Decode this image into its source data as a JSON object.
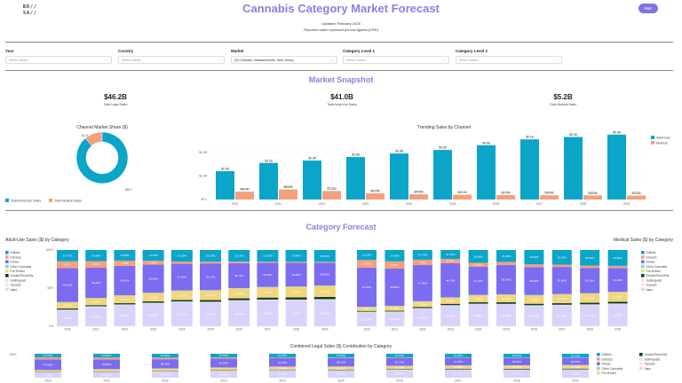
{
  "header": {
    "logo_text": "BD// SA//",
    "title": "Cannabis Category Market Forecast",
    "pdf_label": "PDF",
    "updated": "Updated: February 2025",
    "note": "Reported sales represent pre-tax figures (USD)"
  },
  "filters": [
    {
      "label": "Year",
      "value": "",
      "placeholder": "Select values"
    },
    {
      "label": "Country",
      "value": "",
      "placeholder": "Select values"
    },
    {
      "label": "Market",
      "value": "(3) Colorado, Massachusetts, New Jersey",
      "placeholder": ""
    },
    {
      "label": "Category Level 1",
      "value": "",
      "placeholder": "Select values"
    },
    {
      "label": "Category Level 2",
      "value": "",
      "placeholder": "Select values"
    }
  ],
  "snapshot": {
    "title": "Market Snapshot",
    "kpis": [
      {
        "value": "$46.2B",
        "label": "Total Legal Sales"
      },
      {
        "value": "$41.0B",
        "label": "Total Adult-Use Sales"
      },
      {
        "value": "$5.2B",
        "label": "Total Medical Sales"
      }
    ]
  },
  "forecast_title": "Category Forecast",
  "colors": {
    "accent": "#8a80e0",
    "adult": "#0aa5c8",
    "medical": "#f5a07c"
  },
  "chart_data": [
    {
      "type": "pie",
      "title": "Channel Market Share ($)",
      "labels": [
        "Total Adult-Use Sales",
        "Total Medical Sales"
      ],
      "values": [
        88.7,
        11.3
      ],
      "value_labels": [
        "88.7",
        "11.3"
      ],
      "colors": [
        "#0aa5c8",
        "#f5a07c"
      ],
      "hole": true,
      "legend": "bottom"
    },
    {
      "type": "bar",
      "title": "Trending Sales by Channel",
      "categories": [
        "2020",
        "2021",
        "2022",
        "2023",
        "2024",
        "2025",
        "2026",
        "2027",
        "2028",
        "2029"
      ],
      "series": [
        {
          "name": "Adult-Use",
          "values": [
            2.4,
            3.1,
            3.3,
            3.6,
            3.9,
            4.2,
            4.6,
            5.1,
            5.3,
            5.5
          ],
          "labels": [
            "$2.4B",
            "$3.1B",
            "$3.3B",
            "$3.6B",
            "$3.9B",
            "$4.2B",
            "$4.6B",
            "$5.1B",
            "$5.3B",
            "$5.5B"
          ],
          "color": "#0aa5c8"
        },
        {
          "name": "Medical",
          "values": [
            0.664,
            0.85,
            0.722,
            0.52,
            0.44,
            0.401,
            0.379,
            0.36,
            0.35,
            0.332
          ],
          "labels": [
            "$664M",
            "$850M",
            "$722M",
            "$520M",
            "$440M",
            "$401M",
            "$379M",
            "$360M",
            "$350M",
            "$332M"
          ],
          "color": "#f5a07c"
        }
      ],
      "yticks": [
        "$0.0",
        "$2.0B",
        "$4.0B"
      ],
      "ytick_values": [
        0,
        2,
        4
      ],
      "ylim": [
        0,
        6
      ],
      "legend": "top-right",
      "grid": true
    },
    {
      "type": "bar",
      "stacked": true,
      "title": "Adult-Use Sales ($) by Category",
      "categories": [
        "2020",
        "2021",
        "2022",
        "2023",
        "2024",
        "2025",
        "2026",
        "2027",
        "2028",
        "2029"
      ],
      "yticks": [
        "0%",
        "50%",
        "100%"
      ],
      "legend": "left",
      "series": [
        {
          "name": "Vape",
          "color": "#d8d3fb",
          "values": [
            20.8,
            25.2,
            27.6,
            29.8,
            31.5,
            31.1,
            33.2,
            34,
            34,
            34.5
          ]
        },
        {
          "name": "Topicals",
          "color": "#fde6c6",
          "values": [
            0.5,
            0.5,
            0.5,
            0.5,
            0.5,
            0.5,
            0.5,
            0.5,
            0.5,
            0.5
          ]
        },
        {
          "name": "Sublinguals",
          "color": "#c9eef6",
          "values": [
            0.5,
            0.5,
            0.5,
            0.5,
            0.5,
            0.5,
            0.5,
            0.5,
            0.5,
            0.5
          ]
        },
        {
          "name": "Smoke/Pens/Kits",
          "color": "#0f3b2e",
          "values": [
            1.5,
            1.5,
            1.6,
            1.8,
            2,
            2.2,
            2.4,
            2.6,
            2.8,
            3
          ]
        },
        {
          "name": "Pre-Rolled",
          "color": "#f2d67c",
          "values": [
            8,
            9,
            10,
            11,
            12,
            12.5,
            13,
            13.5,
            14,
            14.5
          ]
        },
        {
          "name": "Other Cannabis",
          "color": "#98d2c3",
          "values": [
            0.5,
            0.5,
            0.5,
            0.5,
            0.5,
            0.5,
            0.5,
            0.5,
            0.5,
            0.5
          ]
        },
        {
          "name": "Flower",
          "color": "#7b6cf2",
          "values": [
            44.5,
            39.8,
            38.4,
            36.8,
            34.9,
            35.1,
            32.7,
            31.6,
            30.8,
            29.8
          ]
        },
        {
          "name": "Extracts",
          "color": "#f5a07c",
          "values": [
            9,
            8.5,
            7,
            5,
            3,
            2.5,
            2,
            1.5,
            1.5,
            1.2
          ]
        },
        {
          "name": "Edibles",
          "color": "#0aa5c8",
          "values": [
            14.7,
            14.5,
            13.9,
            14.1,
            15.1,
            15.1,
            15.2,
            15.3,
            15.4,
            15.5
          ]
        }
      ]
    },
    {
      "type": "bar",
      "stacked": true,
      "title": "Medical Sales ($) by Category",
      "categories": [
        "2020",
        "2021",
        "2022",
        "2023",
        "2024",
        "2025",
        "2026",
        "2027",
        "2028",
        "2029"
      ],
      "legend": "right",
      "series": [
        {
          "name": "Vape",
          "color": "#d8d3fb",
          "values": [
            18.1,
            18.3,
            22.8,
            26.6,
            28.6,
            28.4,
            26.5,
            27.2,
            27.7,
            28.8
          ]
        },
        {
          "name": "Topicals",
          "color": "#fde6c6",
          "values": [
            0.5,
            0.5,
            0.5,
            0.5,
            0.5,
            0.5,
            0.5,
            0.5,
            0.5,
            0.5
          ]
        },
        {
          "name": "Sublinguals",
          "color": "#c9eef6",
          "values": [
            0.5,
            0.5,
            0.5,
            0.5,
            0.5,
            0.5,
            0.5,
            0.5,
            0.5,
            0.5
          ]
        },
        {
          "name": "Smoke/Pens/Kits",
          "color": "#0f3b2e",
          "values": [
            1,
            1,
            1.5,
            1.8,
            2,
            2,
            2,
            2,
            2.2,
            2.4
          ]
        },
        {
          "name": "Pre-Rolled",
          "color": "#f2d67c",
          "values": [
            5,
            6,
            7,
            8,
            9,
            10,
            11,
            11.5,
            12,
            12.5
          ]
        },
        {
          "name": "Other Cannabis",
          "color": "#98d2c3",
          "values": [
            0.5,
            0.5,
            0.5,
            0.5,
            0.5,
            0.5,
            0.5,
            0.5,
            0.5,
            0.5
          ]
        },
        {
          "name": "Flower",
          "color": "#7b6cf2",
          "values": [
            51.3,
            48.8,
            47.5,
            44.7,
            37.1,
            38.5,
            36.6,
            35.6,
            33.1,
            31.2
          ]
        },
        {
          "name": "Extracts",
          "color": "#f5a07c",
          "values": [
            10,
            9.5,
            7,
            5.5,
            5,
            4,
            3.5,
            3,
            3,
            2.8
          ]
        },
        {
          "name": "Edibles",
          "color": "#0aa5c8",
          "values": [
            13.1,
            14.9,
            12.7,
            11.9,
            16.8,
            15.6,
            18.9,
            19.2,
            20.5,
            20.8
          ]
        }
      ]
    },
    {
      "type": "bar",
      "stacked": true,
      "title": "Combined Legal Sales ($) Contribution by Category",
      "categories": [
        "2020",
        "2021",
        "2022",
        "2023",
        "2024",
        "2025",
        "2026",
        "2027",
        "2028",
        "2029"
      ],
      "yticks": [
        "100%"
      ],
      "legend": "right",
      "series": [
        {
          "name": "Vape",
          "color": "#d8d3fb",
          "values": [
            21.0,
            23.9,
            25.6,
            28.4,
            31.0,
            30.7,
            32.8,
            33.7,
            33.5,
            33.9
          ]
        },
        {
          "name": "Topicals",
          "color": "#fde6c6",
          "values": [
            0.5,
            0.5,
            0.5,
            0.5,
            0.5,
            0.5,
            0.5,
            0.5,
            0.5,
            0.5
          ]
        },
        {
          "name": "Sublinguals",
          "color": "#c9eef6",
          "values": [
            0.5,
            0.5,
            0.5,
            0.5,
            0.5,
            0.5,
            0.5,
            0.5,
            0.5,
            0.5
          ]
        },
        {
          "name": "Smoke/Pens/Kits",
          "color": "#0f3b2e",
          "values": [
            1.5,
            1.5,
            1.6,
            1.8,
            2,
            2.2,
            2.4,
            2.6,
            2.8,
            3
          ]
        },
        {
          "name": "Pre-Rolled",
          "color": "#f2d67c",
          "values": [
            8,
            9,
            10,
            11,
            12,
            12.5,
            13,
            13.5,
            14,
            14.5
          ]
        },
        {
          "name": "Other Cannabis",
          "color": "#98d2c3",
          "values": [
            0.5,
            0.5,
            0.5,
            0.5,
            0.5,
            0.5,
            0.5,
            0.5,
            0.5,
            0.5
          ]
        },
        {
          "name": "Flower",
          "color": "#7b6cf2",
          "values": [
            44.5,
            39.8,
            38.4,
            36.8,
            34.9,
            35.1,
            32.7,
            31.6,
            30.8,
            29.8
          ]
        },
        {
          "name": "Extracts",
          "color": "#f5a07c",
          "values": [
            9,
            8.5,
            7,
            5,
            3,
            2.5,
            2,
            1.5,
            1.5,
            1.2
          ]
        },
        {
          "name": "Edibles",
          "color": "#0aa5c8",
          "values": [
            14.5,
            15.8,
            15.9,
            15.5,
            15.6,
            15.5,
            15.6,
            15.6,
            15.9,
            16.1
          ]
        }
      ]
    }
  ]
}
